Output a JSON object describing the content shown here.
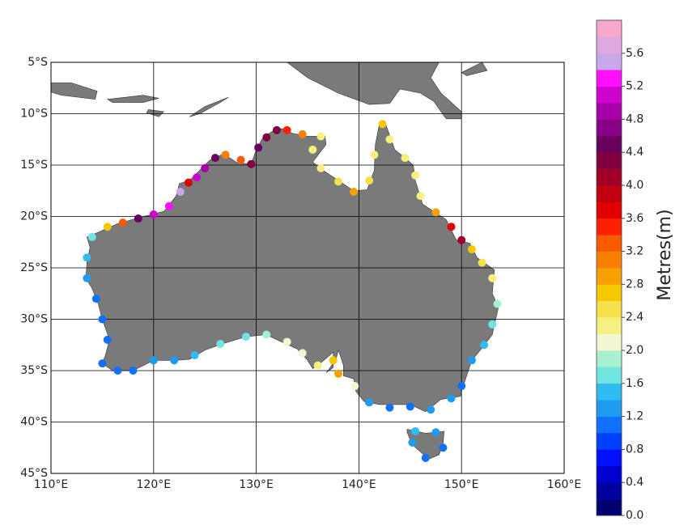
{
  "map": {
    "type": "map",
    "xlim": [
      110,
      160
    ],
    "ylim": [
      -45,
      -5
    ],
    "xticks": [
      {
        "value": 110,
        "label": "110°E"
      },
      {
        "value": 120,
        "label": "120°E"
      },
      {
        "value": 130,
        "label": "130°E"
      },
      {
        "value": 140,
        "label": "140°E"
      },
      {
        "value": 150,
        "label": "150°E"
      },
      {
        "value": 160,
        "label": "160°E"
      }
    ],
    "yticks": [
      {
        "value": -5,
        "label": "5°S"
      },
      {
        "value": -10,
        "label": "10°S"
      },
      {
        "value": -15,
        "label": "15°S"
      },
      {
        "value": -20,
        "label": "20°S"
      },
      {
        "value": -25,
        "label": "25°S"
      },
      {
        "value": -30,
        "label": "30°S"
      },
      {
        "value": -35,
        "label": "35°S"
      },
      {
        "value": -40,
        "label": "40°S"
      },
      {
        "value": -45,
        "label": "45°S"
      }
    ],
    "grid": true,
    "land_color": "#7a7a7a",
    "colorbar": {
      "label": "Metres(m)",
      "lim": [
        0,
        6
      ],
      "ticks": [
        {
          "value": 0,
          "label": "0.0"
        },
        0.4,
        0.8,
        1.2,
        1.6,
        {
          "value": 2,
          "label": "2.0"
        },
        2.4,
        2.8,
        3.2,
        3.6,
        {
          "value": 4,
          "label": "4.0"
        },
        4.4,
        4.8,
        5.2,
        5.6
      ],
      "colors": [
        "#000070",
        "#0000a0",
        "#0000d0",
        "#0010ff",
        "#0040ff",
        "#1070ff",
        "#1e9cf0",
        "#30bcf0",
        "#70e4e0",
        "#a8f0d0",
        "#f5f5d2",
        "#f5f080",
        "#f5e24a",
        "#f5c800",
        "#f8a000",
        "#f88000",
        "#f85a00",
        "#ff2000",
        "#e00000",
        "#c00010",
        "#a00028",
        "#800040",
        "#680060",
        "#880088",
        "#a800a8",
        "#d000d0",
        "#ff10ff",
        "#c8a8e8",
        "#e0a8e0",
        "#f8a8cc"
      ]
    },
    "points": {
      "lon": [
        115,
        116.5,
        118,
        120,
        122,
        124,
        126.5,
        129,
        131,
        133,
        134.5,
        136,
        137.5,
        138,
        139.6,
        141,
        143,
        145,
        147,
        149,
        150,
        151,
        152.2,
        153,
        153.5,
        153,
        152,
        151,
        150,
        149,
        147.5,
        146,
        145.5,
        144.5,
        143,
        142.3,
        141.5,
        141,
        139.5,
        138,
        136.3,
        135.5,
        136.3,
        134.5,
        133,
        132,
        131,
        130.2,
        129.5,
        128.5,
        127,
        126,
        125,
        124.2,
        123.4,
        122.6,
        121.5,
        120,
        118.5,
        117,
        115.5,
        114,
        113.5,
        113.5,
        114.4,
        115,
        115.5,
        145.5,
        147.5,
        148.2,
        146.5,
        145.2
      ],
      "lat": [
        -34.3,
        -35,
        -35,
        -34,
        -34,
        -33.5,
        -32.4,
        -31.7,
        -31.5,
        -32.2,
        -33.3,
        -34.5,
        -34,
        -35.3,
        -36.5,
        -38.1,
        -38.6,
        -38.5,
        -38.8,
        -37.7,
        -36.5,
        -34,
        -32.5,
        -30.5,
        -28.5,
        -26,
        -24.5,
        -23.2,
        -22.3,
        -21,
        -19.6,
        -18,
        -16,
        -14.3,
        -12.5,
        -11,
        -14,
        -16.5,
        -17.6,
        -16.6,
        -15.3,
        -13.5,
        -12.2,
        -12,
        -11.6,
        -11.6,
        -12.3,
        -13.3,
        -14.9,
        -14.5,
        -14,
        -14.3,
        -15.3,
        -16.2,
        -16.7,
        -17.6,
        -19,
        -19.8,
        -20.2,
        -20.6,
        -21,
        -22,
        -24,
        -26,
        -28,
        -30,
        -32,
        -40.9,
        -41,
        -42.5,
        -43.5,
        -42
      ],
      "values": [
        1.2,
        1.1,
        1.2,
        1.4,
        1.4,
        1.5,
        1.6,
        1.7,
        1.9,
        2.1,
        2,
        2.2,
        2.6,
        2.9,
        2,
        1.3,
        1.1,
        1,
        1.4,
        1.3,
        1.2,
        1.4,
        1.5,
        1.6,
        1.9,
        2.2,
        2.5,
        2.7,
        4,
        3.8,
        2.9,
        2.4,
        2.2,
        2.3,
        2.3,
        2.6,
        2.4,
        2.5,
        2.9,
        2.5,
        2.3,
        2.2,
        2.4,
        3,
        3.4,
        4.2,
        4.3,
        4.4,
        4.3,
        3.2,
        3,
        4.6,
        4.9,
        5.1,
        3.8,
        5.5,
        5.3,
        5,
        4.4,
        3.2,
        2.7,
        1.7,
        1.5,
        1.4,
        1.2,
        1.2,
        1.2,
        1.5,
        1.3,
        1.2,
        1.2,
        1.3
      ]
    }
  }
}
